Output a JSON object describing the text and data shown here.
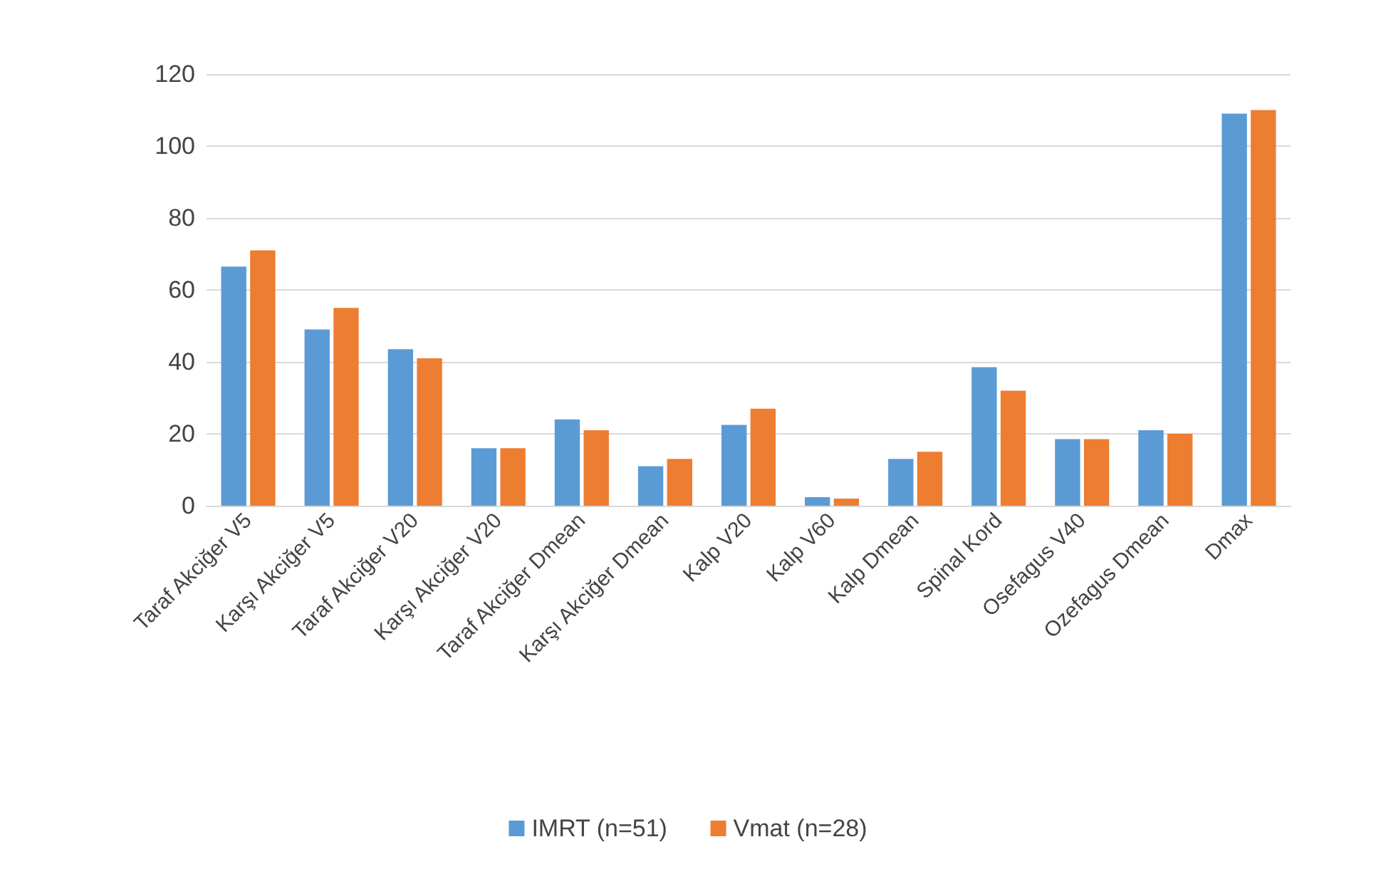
{
  "chart_data": {
    "type": "bar",
    "categories": [
      "Taraf Akciğer V5",
      "Karşı Akciğer V5",
      "Taraf Akciğer V20",
      "Karşı Akciğer V20",
      "Taraf Akciğer Dmean",
      "Karşı Akciğer Dmean",
      "Kalp V20",
      "Kalp V60",
      "Kalp Dmean",
      "Spinal Kord",
      "Osefagus V40",
      "Ozefagus Dmean",
      "Dmax"
    ],
    "series": [
      {
        "name": "IMRT (n=51)",
        "color": "#5b9bd5",
        "values": [
          66.5,
          49,
          43.5,
          16,
          24,
          11,
          22.5,
          2.4,
          13,
          38.5,
          18.5,
          21,
          109
        ]
      },
      {
        "name": "Vmat (n=28)",
        "color": "#ed7d31",
        "values": [
          71,
          55,
          41,
          16,
          21,
          13,
          27,
          2,
          15,
          32,
          18.5,
          20,
          110
        ]
      }
    ],
    "ylim": [
      0,
      120
    ],
    "yticks": [
      0,
      20,
      40,
      60,
      80,
      100,
      120
    ],
    "grid": "y",
    "legend": "bottom"
  }
}
